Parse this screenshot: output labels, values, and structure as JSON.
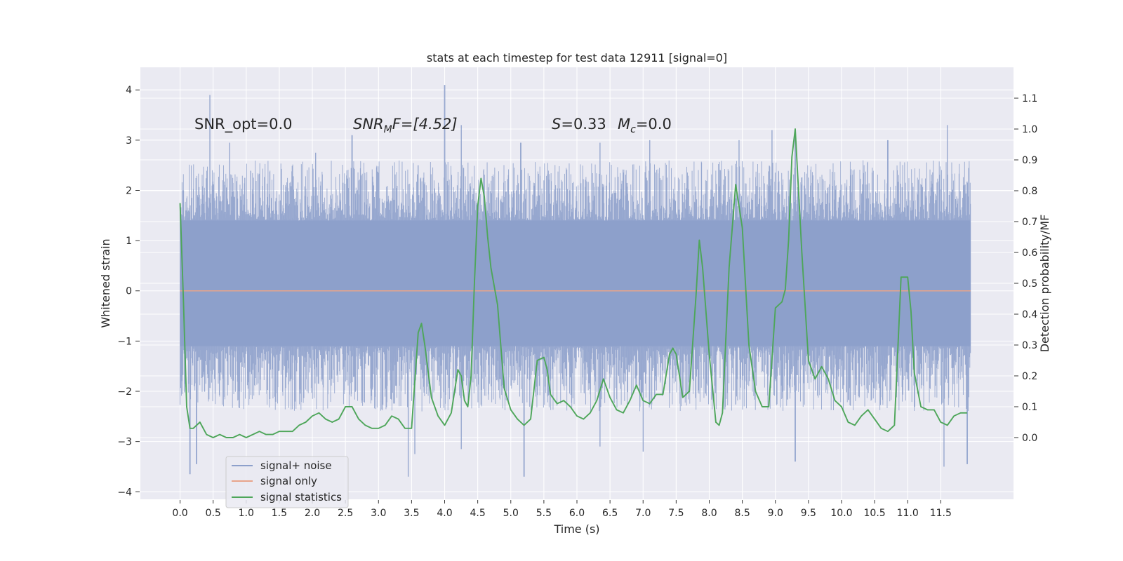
{
  "chart_data": {
    "type": "line",
    "title": "stats at each timestep for test data 12911 [signal=0]",
    "xlabel": "Time (s)",
    "ylabel": "Whitened strain",
    "y2label": "Detection probability/MF",
    "xlim": [
      -0.6,
      12.6
    ],
    "ylim": [
      -4.15,
      4.45
    ],
    "y2lim": [
      -0.2,
      1.2
    ],
    "x_ticks": [
      0.0,
      0.5,
      1.0,
      1.5,
      2.0,
      2.5,
      3.0,
      3.5,
      4.0,
      4.5,
      5.0,
      5.5,
      6.0,
      6.5,
      7.0,
      7.5,
      8.0,
      8.5,
      9.0,
      9.5,
      10.0,
      10.5,
      11.0,
      11.5
    ],
    "x_tick_labels": [
      "0.0",
      "0.5",
      "1.0",
      "1.5",
      "2.0",
      "2.5",
      "3.0",
      "3.5",
      "4.0",
      "4.5",
      "5.0",
      "5.5",
      "6.0",
      "6.5",
      "7.0",
      "7.5",
      "8.0",
      "8.5",
      "9.0",
      "9.5",
      "10.0",
      "10.5",
      "11.0",
      "11.5"
    ],
    "y_ticks": [
      4,
      3,
      2,
      1,
      0,
      -1,
      -2,
      -3,
      -4
    ],
    "y_tick_labels": [
      "4",
      "3",
      "2",
      "1",
      "0",
      "−1",
      "−2",
      "−3",
      "−4"
    ],
    "y2_ticks": [
      1.1,
      1.0,
      0.9,
      0.8,
      0.7,
      0.6,
      0.5,
      0.4,
      0.3,
      0.2,
      0.1,
      0.0
    ],
    "y2_tick_labels": [
      "1.1",
      "1.0",
      "0.9",
      "0.8",
      "0.7",
      "0.6",
      "0.5",
      "0.4",
      "0.3",
      "0.2",
      "0.1",
      "0.0"
    ],
    "grid": true,
    "annotations": {
      "snr_opt": "SNR_opt=0.0",
      "snr_mf_main": "SNR",
      "snr_mf_sub": "M",
      "snr_mf_rest": "F=[4.52]",
      "s_main": "S",
      "s_rest": "=0.33",
      "mc_main": "M",
      "mc_sub": "c",
      "mc_rest": "=0.0"
    },
    "legend": {
      "position": "lower-left",
      "entries": [
        "signal+ noise",
        "signal only",
        "signal statistics"
      ]
    },
    "series": [
      {
        "name": "signal+ noise",
        "axis": "left",
        "color": "#8da0cb",
        "style": "noise-band",
        "x_range": [
          0.0,
          11.95
        ],
        "envelope_upper": [
          1.4,
          1.4
        ],
        "envelope_lower": [
          -1.1,
          -1.1
        ],
        "spike_highs": [
          [
            0.05,
            2.0
          ],
          [
            0.45,
            3.9
          ],
          [
            0.75,
            2.95
          ],
          [
            2.05,
            2.75
          ],
          [
            2.6,
            3.1
          ],
          [
            3.6,
            2.5
          ],
          [
            4.0,
            4.1
          ],
          [
            4.25,
            3.3
          ],
          [
            5.15,
            2.95
          ],
          [
            6.35,
            2.95
          ],
          [
            7.1,
            3.0
          ],
          [
            8.45,
            3.0
          ],
          [
            8.95,
            3.2
          ],
          [
            9.3,
            3.1
          ],
          [
            10.7,
            3.0
          ],
          [
            11.6,
            3.3
          ],
          [
            11.9,
            2.15
          ]
        ],
        "spike_lows": [
          [
            0.15,
            -3.65
          ],
          [
            0.25,
            -3.45
          ],
          [
            3.45,
            -3.7
          ],
          [
            3.55,
            -3.25
          ],
          [
            4.25,
            -3.15
          ],
          [
            5.2,
            -3.7
          ],
          [
            6.35,
            -3.1
          ],
          [
            7.0,
            -3.2
          ],
          [
            9.3,
            -3.4
          ],
          [
            11.55,
            -3.5
          ],
          [
            11.9,
            -3.45
          ]
        ]
      },
      {
        "name": "signal only",
        "axis": "left",
        "color": "#e8a48a",
        "x": [
          0.0,
          11.95
        ],
        "y": [
          0.0,
          0.0
        ]
      },
      {
        "name": "signal statistics",
        "axis": "right",
        "color": "#4ea65a",
        "x": [
          0.0,
          0.05,
          0.1,
          0.15,
          0.2,
          0.3,
          0.4,
          0.5,
          0.6,
          0.7,
          0.8,
          0.9,
          1.0,
          1.1,
          1.2,
          1.3,
          1.4,
          1.5,
          1.6,
          1.7,
          1.8,
          1.9,
          2.0,
          2.1,
          2.15,
          2.2,
          2.3,
          2.4,
          2.5,
          2.6,
          2.7,
          2.8,
          2.9,
          3.0,
          3.1,
          3.2,
          3.3,
          3.4,
          3.5,
          3.6,
          3.65,
          3.7,
          3.8,
          3.9,
          4.0,
          4.1,
          4.2,
          4.25,
          4.3,
          4.35,
          4.4,
          4.45,
          4.5,
          4.55,
          4.6,
          4.65,
          4.7,
          4.8,
          4.9,
          5.0,
          5.1,
          5.2,
          5.3,
          5.4,
          5.5,
          5.55,
          5.6,
          5.7,
          5.8,
          5.9,
          6.0,
          6.1,
          6.2,
          6.3,
          6.4,
          6.5,
          6.6,
          6.7,
          6.8,
          6.9,
          7.0,
          7.1,
          7.2,
          7.3,
          7.4,
          7.45,
          7.5,
          7.6,
          7.7,
          7.8,
          7.85,
          7.9,
          8.0,
          8.1,
          8.15,
          8.2,
          8.3,
          8.4,
          8.5,
          8.6,
          8.7,
          8.8,
          8.9,
          9.0,
          9.1,
          9.15,
          9.2,
          9.25,
          9.3,
          9.35,
          9.4,
          9.5,
          9.6,
          9.7,
          9.8,
          9.9,
          10.0,
          10.1,
          10.2,
          10.3,
          10.4,
          10.5,
          10.6,
          10.7,
          10.8,
          10.9,
          11.0,
          11.05,
          11.1,
          11.2,
          11.3,
          11.4,
          11.5,
          11.6,
          11.7,
          11.8,
          11.9
        ],
        "y": [
          0.76,
          0.45,
          0.1,
          0.03,
          0.03,
          0.05,
          0.01,
          0.0,
          0.01,
          0.0,
          0.0,
          0.01,
          0.0,
          0.01,
          0.02,
          0.01,
          0.01,
          0.02,
          0.02,
          0.02,
          0.04,
          0.05,
          0.07,
          0.08,
          0.07,
          0.06,
          0.05,
          0.06,
          0.1,
          0.1,
          0.06,
          0.04,
          0.03,
          0.03,
          0.04,
          0.07,
          0.06,
          0.03,
          0.03,
          0.34,
          0.37,
          0.3,
          0.13,
          0.07,
          0.04,
          0.08,
          0.22,
          0.2,
          0.12,
          0.1,
          0.2,
          0.5,
          0.75,
          0.84,
          0.78,
          0.65,
          0.55,
          0.43,
          0.16,
          0.09,
          0.06,
          0.04,
          0.06,
          0.25,
          0.26,
          0.22,
          0.14,
          0.11,
          0.12,
          0.1,
          0.07,
          0.06,
          0.08,
          0.12,
          0.19,
          0.13,
          0.09,
          0.08,
          0.12,
          0.17,
          0.12,
          0.11,
          0.14,
          0.14,
          0.27,
          0.29,
          0.27,
          0.13,
          0.15,
          0.46,
          0.64,
          0.55,
          0.27,
          0.05,
          0.04,
          0.08,
          0.55,
          0.82,
          0.68,
          0.3,
          0.15,
          0.1,
          0.1,
          0.42,
          0.44,
          0.48,
          0.64,
          0.91,
          1.0,
          0.8,
          0.6,
          0.25,
          0.19,
          0.23,
          0.19,
          0.12,
          0.1,
          0.05,
          0.04,
          0.07,
          0.09,
          0.06,
          0.03,
          0.02,
          0.04,
          0.52,
          0.52,
          0.41,
          0.21,
          0.1,
          0.09,
          0.09,
          0.05,
          0.04,
          0.07,
          0.08,
          0.08
        ]
      }
    ]
  }
}
